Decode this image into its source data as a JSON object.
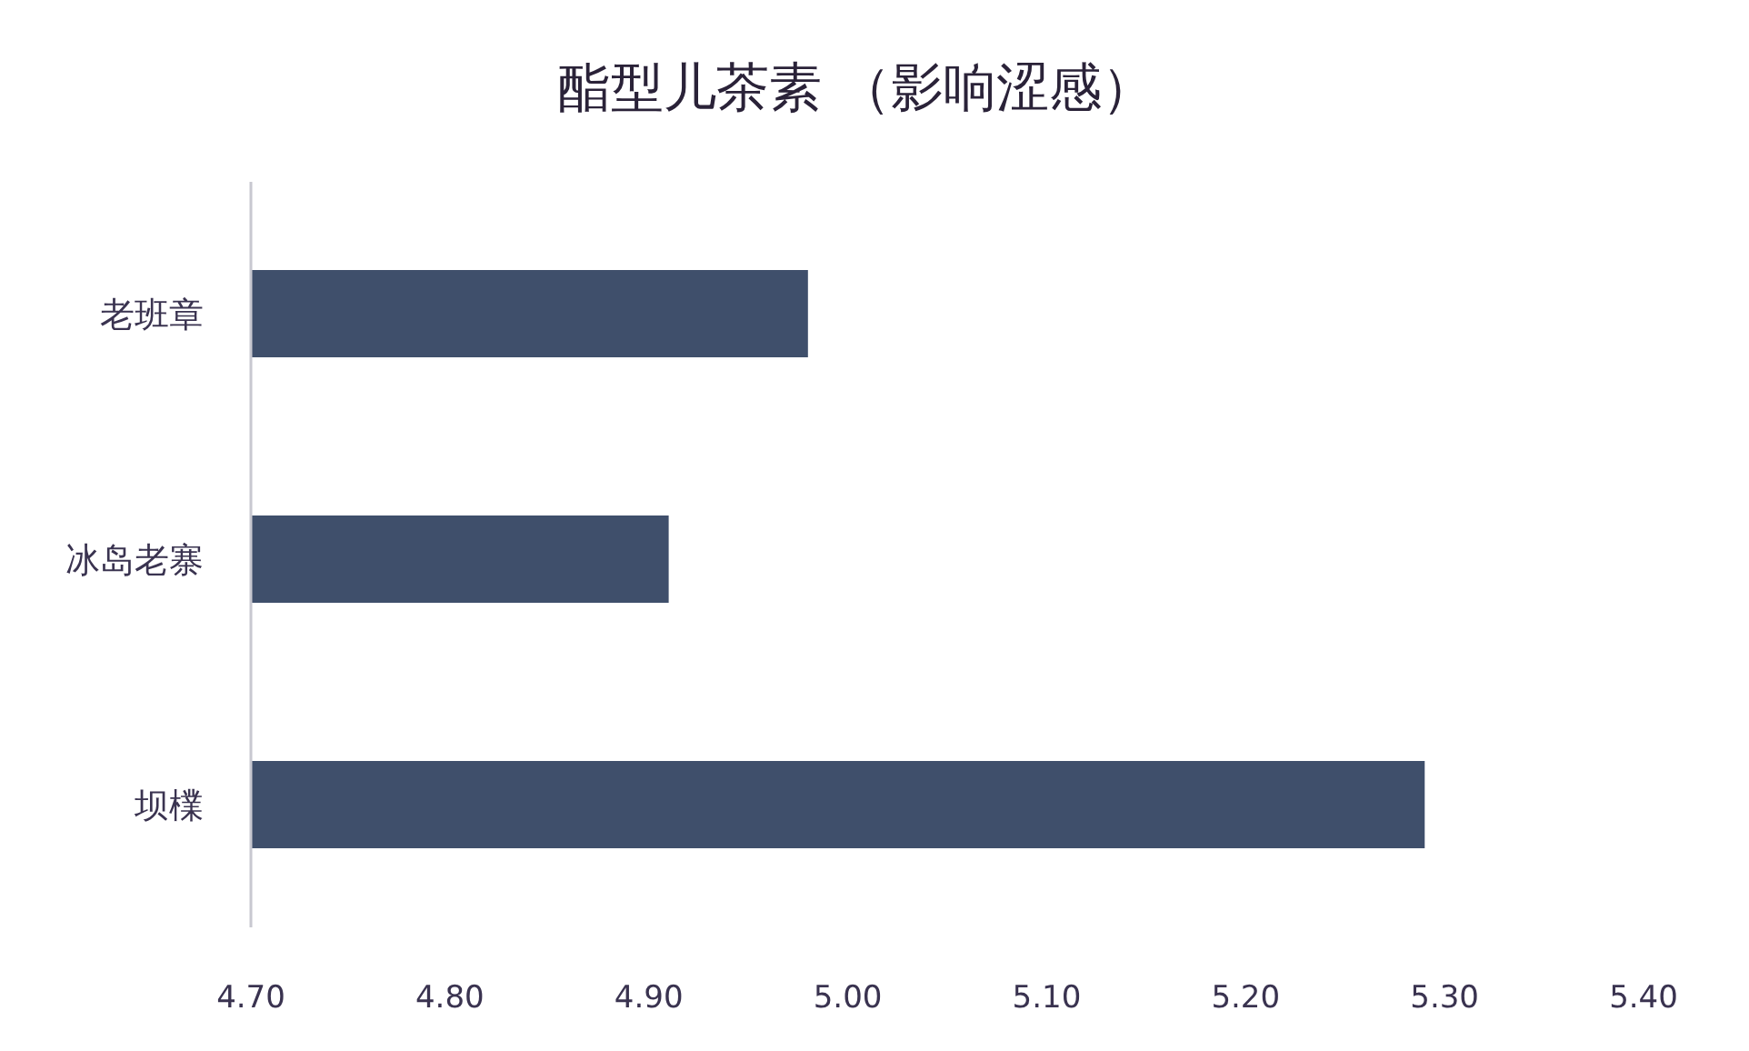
{
  "chart_data": {
    "type": "bar",
    "orientation": "horizontal",
    "title": "酯型儿茶素 （影响涩感）",
    "categories": [
      "老班章",
      "冰岛老寨",
      "坝檏"
    ],
    "values": [
      4.98,
      4.91,
      5.29
    ],
    "color": "#3f4f6b",
    "xlim": [
      4.7,
      5.4
    ],
    "xticks": [
      {
        "value": 4.7,
        "label": "4.70"
      },
      {
        "value": 4.8,
        "label": "4.80"
      },
      {
        "value": 4.9,
        "label": "4.90"
      },
      {
        "value": 5.0,
        "label": "5.00"
      },
      {
        "value": 5.1,
        "label": "5.10"
      },
      {
        "value": 5.2,
        "label": "5.20"
      },
      {
        "value": 5.3,
        "label": "5.30"
      },
      {
        "value": 5.4,
        "label": "5.40"
      }
    ],
    "grid": false
  }
}
